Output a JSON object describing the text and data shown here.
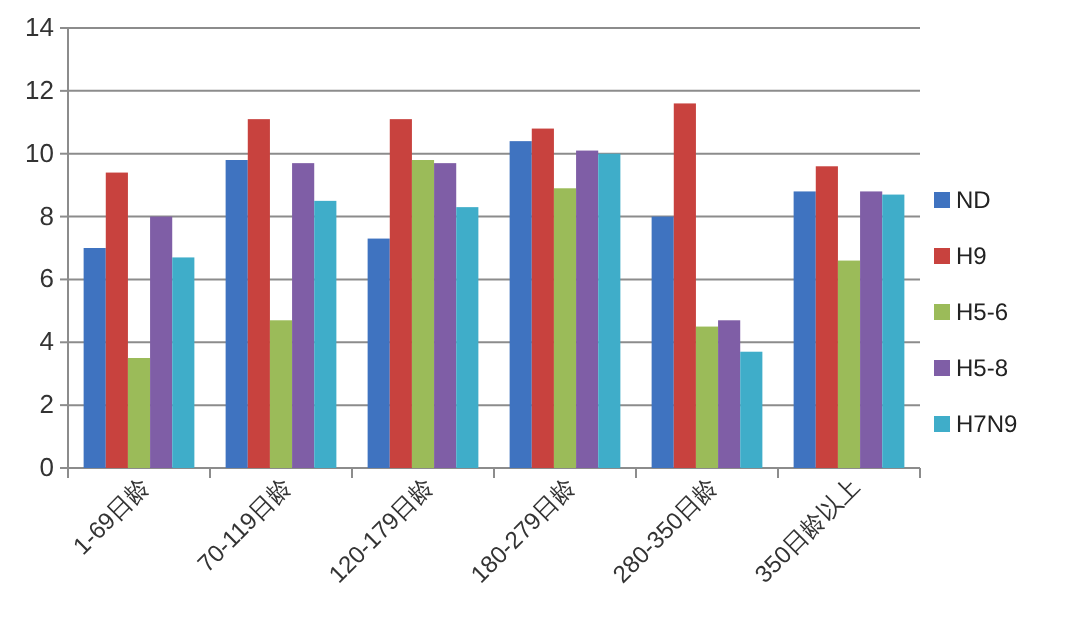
{
  "chart_data": {
    "type": "bar",
    "categories": [
      "1-69日龄",
      "70-119日龄",
      "120-179日龄",
      "180-279日龄",
      "280-350日龄",
      "350日龄以上"
    ],
    "series": [
      {
        "name": "ND",
        "color": "#3f73c0",
        "values": [
          7.0,
          9.8,
          7.3,
          10.4,
          8.0,
          8.8
        ]
      },
      {
        "name": "H9",
        "color": "#c8423e",
        "values": [
          9.4,
          11.1,
          11.1,
          10.8,
          11.6,
          9.6
        ]
      },
      {
        "name": "H5-6",
        "color": "#9bbb59",
        "values": [
          3.5,
          4.7,
          9.8,
          8.9,
          4.5,
          6.6
        ]
      },
      {
        "name": "H5-8",
        "color": "#7f5ea6",
        "values": [
          8.0,
          9.7,
          9.7,
          10.1,
          4.7,
          8.8
        ]
      },
      {
        "name": "H7N9",
        "color": "#3fadc9",
        "values": [
          6.7,
          8.5,
          8.3,
          10.0,
          3.7,
          8.7
        ]
      }
    ],
    "ylim": [
      0,
      14
    ],
    "yticks": [
      0,
      2,
      4,
      6,
      8,
      10,
      12,
      14
    ],
    "grid": "y",
    "legend": "right"
  }
}
